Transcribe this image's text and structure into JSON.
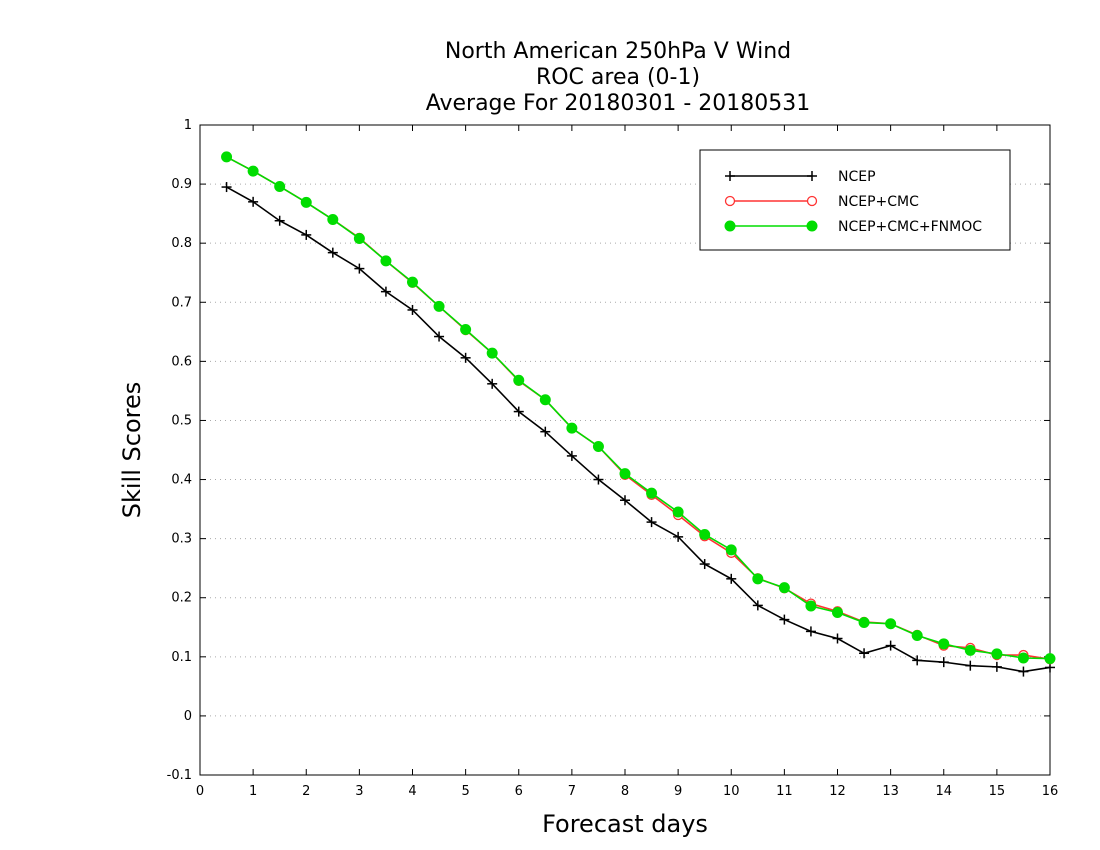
{
  "chart_data": {
    "type": "line",
    "title": [
      "North American 250hPa V Wind",
      "ROC area (0-1)",
      "Average For 20180301 - 20180531"
    ],
    "xlabel": "Forecast days",
    "ylabel": "Skill Scores",
    "xlim": [
      0,
      16
    ],
    "ylim": [
      -0.1,
      1
    ],
    "xticks": [
      0,
      1,
      2,
      3,
      4,
      5,
      6,
      7,
      8,
      9,
      10,
      11,
      12,
      13,
      14,
      15,
      16
    ],
    "yticks": [
      -0.1,
      0,
      0.1,
      0.2,
      0.3,
      0.4,
      0.5,
      0.6,
      0.7,
      0.8,
      0.9,
      1
    ],
    "ytick_labels": [
      "-0.1",
      "0",
      "0.1",
      "0.2",
      "0.3",
      "0.4",
      "0.5",
      "0.6",
      "0.7",
      "0.8",
      "0.9",
      "1"
    ],
    "grid": "horizontal-dotted",
    "legend_position": "top-right",
    "x": [
      0.5,
      1,
      1.5,
      2,
      2.5,
      3,
      3.5,
      4,
      4.5,
      5,
      5.5,
      6,
      6.5,
      7,
      7.5,
      8,
      8.5,
      9,
      9.5,
      10,
      10.5,
      11,
      11.5,
      12,
      12.5,
      13,
      13.5,
      14,
      14.5,
      15,
      15.5,
      16
    ],
    "series": [
      {
        "name": "NCEP",
        "color": "#000000",
        "marker": "plus",
        "values": [
          0.895,
          0.87,
          0.838,
          0.814,
          0.784,
          0.757,
          0.718,
          0.687,
          0.642,
          0.606,
          0.562,
          0.515,
          0.481,
          0.44,
          0.4,
          0.365,
          0.328,
          0.303,
          0.257,
          0.232,
          0.187,
          0.163,
          0.143,
          0.131,
          0.106,
          0.119,
          0.094,
          0.091,
          0.085,
          0.083,
          0.075,
          0.082
        ]
      },
      {
        "name": "NCEP+CMC",
        "color": "#ff3333",
        "marker": "open-circle",
        "values": [
          0.946,
          0.922,
          0.896,
          0.869,
          0.84,
          0.809,
          0.77,
          0.733,
          0.693,
          0.653,
          0.614,
          0.567,
          0.535,
          0.487,
          0.456,
          0.408,
          0.374,
          0.34,
          0.304,
          0.276,
          0.233,
          0.216,
          0.19,
          0.177,
          0.159,
          0.156,
          0.137,
          0.119,
          0.115,
          0.103,
          0.103,
          0.096
        ]
      },
      {
        "name": "NCEP+CMC+FNMOC",
        "color": "#00dd00",
        "marker": "filled-circle",
        "values": [
          0.946,
          0.922,
          0.896,
          0.869,
          0.84,
          0.808,
          0.77,
          0.734,
          0.693,
          0.654,
          0.614,
          0.568,
          0.535,
          0.487,
          0.456,
          0.41,
          0.377,
          0.345,
          0.307,
          0.281,
          0.232,
          0.217,
          0.186,
          0.175,
          0.158,
          0.156,
          0.136,
          0.122,
          0.111,
          0.105,
          0.098,
          0.097
        ]
      }
    ]
  }
}
